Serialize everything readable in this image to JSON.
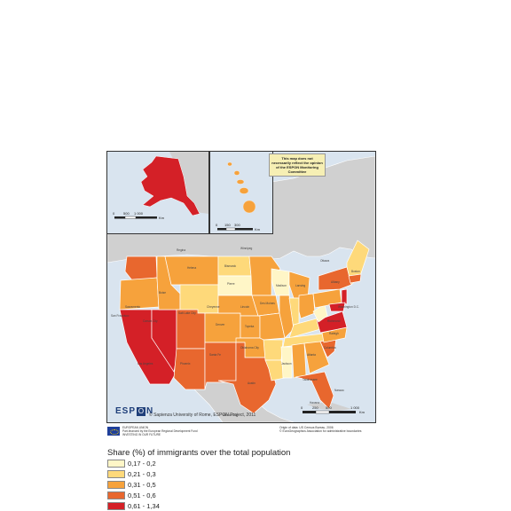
{
  "disclaimer": "This map does not necessarily reflect the opinion of the ESPON Monitoring Committee",
  "copyright": "© Sapienza University of Rome, ESPON Project, 2011",
  "logo": {
    "prefix": "ESP",
    "box": "O",
    "suffix": "N"
  },
  "eu": {
    "line1": "EUROPEAN UNION",
    "line2": "Part-financed by the European Regional Development Fund",
    "line3": "INVESTING IN OUR FUTURE"
  },
  "origin": {
    "line1": "Origin of data: US Census Bureau, 2006",
    "line2": "© EuroGeographics Association for administrative boundaries"
  },
  "scales": {
    "alaska": [
      "0",
      "500",
      "1 000",
      "Km"
    ],
    "hawaii": [
      "0",
      "150",
      "300",
      "Km"
    ],
    "main": [
      "0",
      "250",
      "500",
      "1 000",
      "Km"
    ]
  },
  "legend": {
    "title": "Share (%) of immigrants over the total population",
    "classes": [
      {
        "label": "0,17 - 0,2",
        "color": "#fff6c7"
      },
      {
        "label": "0,21 - 0,3",
        "color": "#fed97a"
      },
      {
        "label": "0,31 - 0,5",
        "color": "#f6a23c"
      },
      {
        "label": "0,51 - 0,6",
        "color": "#e8672e"
      },
      {
        "label": "0,61 - 1,34",
        "color": "#d42027"
      }
    ]
  },
  "colors": {
    "water": "#d9e4ef",
    "land_other": "#d0d0d0",
    "border": "#ffffff"
  },
  "cities": [
    "Regina",
    "Winnipeg",
    "Helena",
    "Bismarck",
    "Pierre",
    "Boise",
    "Salt Lake City",
    "Cheyenne",
    "Denver",
    "Lincoln",
    "Topeka",
    "Des Moines",
    "Madison",
    "Lansing",
    "Albany",
    "Boston",
    "Carson City",
    "Sacramento",
    "San Francisco",
    "Los Angeles",
    "Phoenix",
    "Santa Fe",
    "Oklahoma City",
    "Austin",
    "Jackson",
    "Atlanta",
    "Tallahassee",
    "Columbia",
    "Raleigh",
    "Richmond",
    "Washington D.C.",
    "Ottawa",
    "Mexico City",
    "Havana",
    "Nassau"
  ]
}
